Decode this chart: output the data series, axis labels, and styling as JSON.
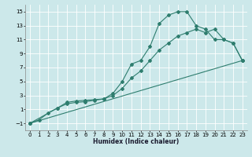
{
  "xlabel": "Humidex (Indice chaleur)",
  "bg_color": "#cce8ea",
  "grid_color": "#ffffff",
  "line_color": "#2e7d6e",
  "xlim": [
    -0.5,
    23.5
  ],
  "ylim": [
    -2,
    16
  ],
  "xticks": [
    0,
    1,
    2,
    3,
    4,
    5,
    6,
    7,
    8,
    9,
    10,
    11,
    12,
    13,
    14,
    15,
    16,
    17,
    18,
    19,
    20,
    21,
    22,
    23
  ],
  "yticks": [
    -1,
    1,
    3,
    5,
    7,
    9,
    11,
    13,
    15
  ],
  "line1_x": [
    0,
    1,
    2,
    3,
    4,
    5,
    6,
    7,
    8,
    9,
    10,
    11,
    12,
    13,
    14,
    15,
    16,
    17,
    18,
    19,
    20,
    21,
    22,
    23
  ],
  "line1_y": [
    -1.0,
    -0.5,
    0.5,
    1.2,
    2.0,
    2.2,
    2.3,
    2.4,
    2.5,
    3.3,
    5.0,
    7.5,
    8.0,
    10.0,
    13.3,
    14.5,
    15.0,
    15.0,
    13.0,
    12.5,
    11.0,
    11.0,
    10.5,
    8.0
  ],
  "line2_x": [
    0,
    3,
    4,
    5,
    6,
    7,
    8,
    9,
    10,
    11,
    12,
    13,
    14,
    15,
    16,
    17,
    18,
    19,
    20,
    21,
    22,
    23
  ],
  "line2_y": [
    -1.0,
    1.2,
    1.8,
    2.0,
    2.1,
    2.3,
    2.5,
    3.0,
    4.0,
    5.5,
    6.5,
    8.0,
    9.5,
    10.5,
    11.5,
    12.0,
    12.5,
    12.0,
    12.5,
    11.0,
    10.5,
    8.0
  ],
  "line3_x": [
    0,
    23
  ],
  "line3_y": [
    -1.0,
    8.0
  ]
}
